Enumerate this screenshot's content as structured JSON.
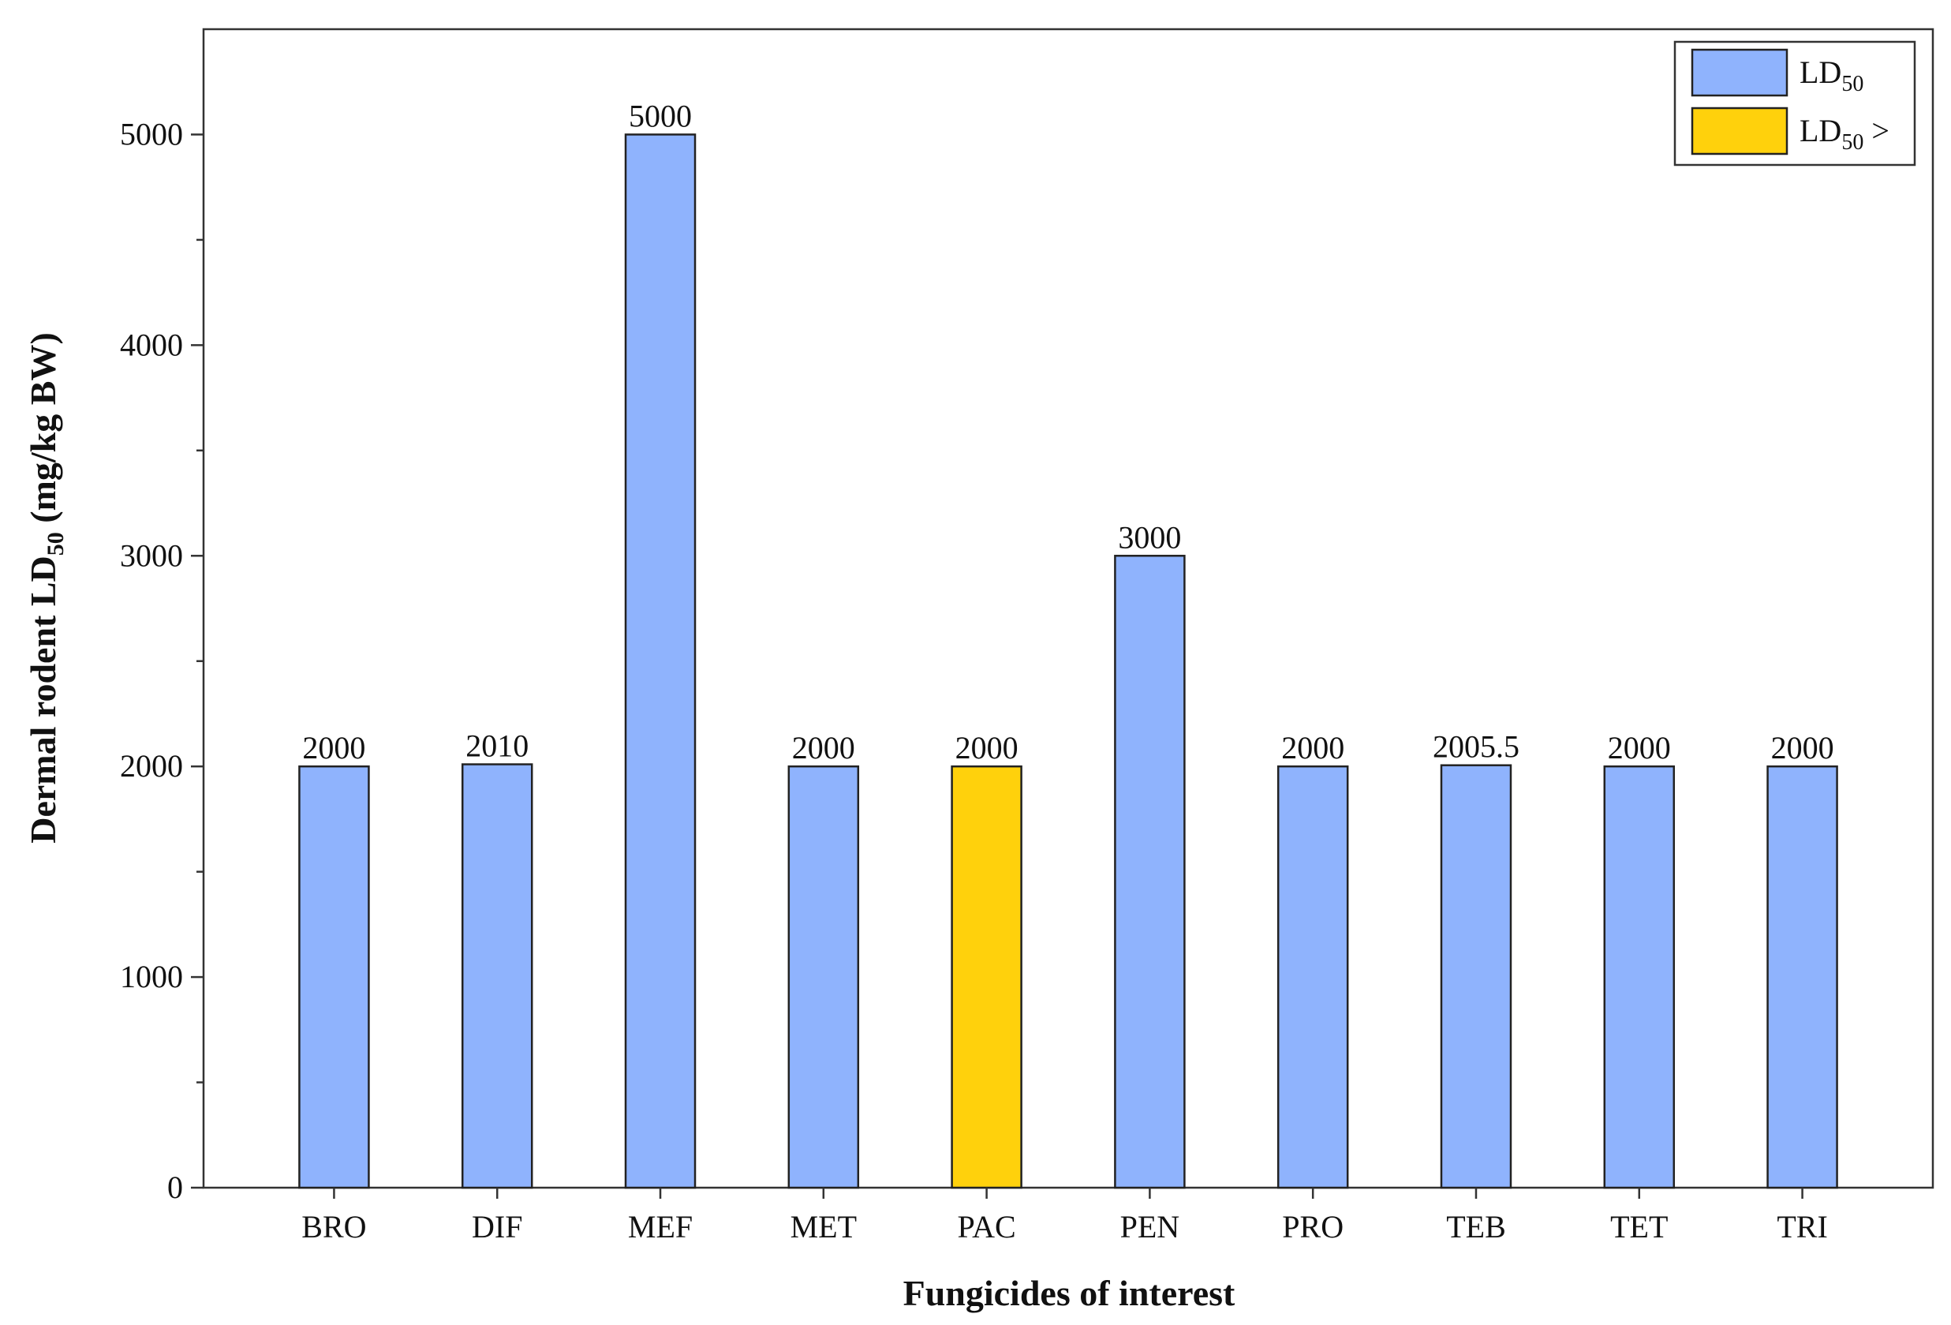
{
  "chart_data": {
    "type": "bar",
    "xlabel": "Fungicides of interest",
    "ylabel": {
      "prefix": "Dermal rodent LD",
      "sub": "50",
      "suffix": " (mg/kg BW)"
    },
    "categories": [
      "BRO",
      "DIF",
      "MEF",
      "MET",
      "PAC",
      "PEN",
      "PRO",
      "TEB",
      "TET",
      "TRI"
    ],
    "values": [
      2000,
      2010,
      5000,
      2000,
      2000,
      3000,
      2000,
      2005.5,
      2000,
      2000
    ],
    "value_labels": [
      "2000",
      "2010",
      "5000",
      "2000",
      "2000",
      "3000",
      "2000",
      "2005.5",
      "2000",
      "2000"
    ],
    "series_of_bar": [
      0,
      0,
      0,
      0,
      1,
      0,
      0,
      0,
      0,
      0
    ],
    "legend": [
      {
        "prefix": "LD",
        "sub": "50",
        "suffix": "",
        "color": "#8fb3fd"
      },
      {
        "prefix": "LD",
        "sub": "50",
        "suffix": " >",
        "color": "#ffd10c"
      }
    ],
    "legend_position": "top-right",
    "ylim": [
      0,
      5500
    ],
    "yticks": [
      0,
      1000,
      2000,
      3000,
      4000,
      5000
    ],
    "grid": false
  }
}
